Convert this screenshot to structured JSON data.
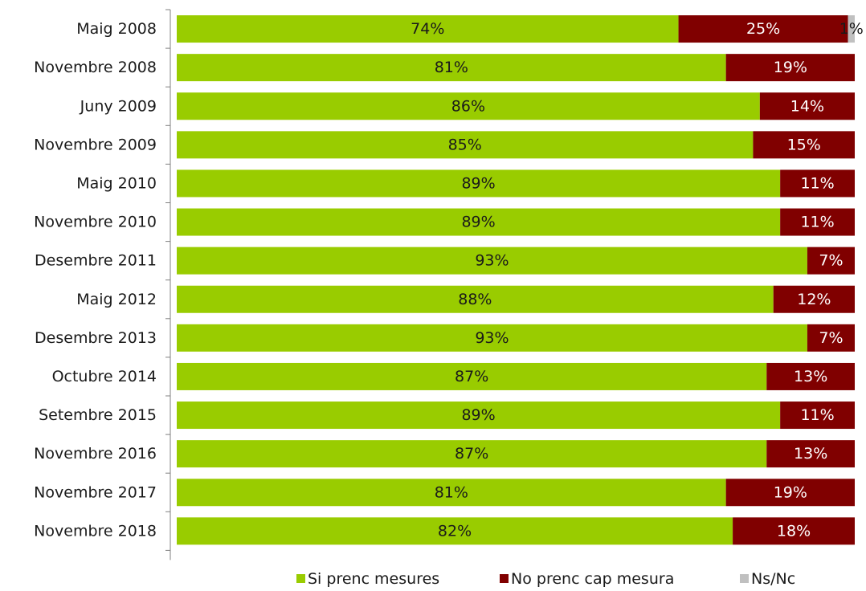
{
  "chart_data": {
    "type": "bar",
    "orientation": "horizontal",
    "stacked": true,
    "percent": true,
    "categories": [
      "Maig 2008",
      "Novembre 2008",
      "Juny 2009",
      "Novembre 2009",
      "Maig 2010",
      "Novembre 2010",
      "Desembre 2011",
      "Maig 2012",
      "Desembre 2013",
      "Octubre 2014",
      "Setembre 2015",
      "Novembre 2016",
      "Novembre 2017",
      "Novembre 2018"
    ],
    "series": [
      {
        "name": "Si prenc mesures",
        "color": "#99cc00",
        "label_color": "#1a1a1a",
        "values": [
          74,
          81,
          86,
          85,
          89,
          89,
          93,
          88,
          93,
          87,
          89,
          87,
          81,
          82
        ],
        "labels": [
          "74%",
          "81%",
          "86%",
          "85%",
          "89%",
          "89%",
          "93%",
          "88%",
          "93%",
          "87%",
          "89%",
          "87%",
          "81%",
          "82%"
        ]
      },
      {
        "name": "No prenc cap mesura",
        "color": "#800000",
        "label_color": "#ffffff",
        "values": [
          25,
          19,
          14,
          15,
          11,
          11,
          7,
          12,
          7,
          13,
          11,
          13,
          19,
          18
        ],
        "labels": [
          "25%",
          "19%",
          "14%",
          "15%",
          "11%",
          "11%",
          "7%",
          "12%",
          "7%",
          "13%",
          "11%",
          "13%",
          "19%",
          "18%"
        ]
      },
      {
        "name": "Ns/Nc",
        "color": "#c0c0c0",
        "label_color": "#1a1a1a",
        "values": [
          1,
          0,
          0,
          0,
          0,
          0,
          0,
          0,
          0,
          0,
          0,
          0,
          0,
          0
        ],
        "labels": [
          "1%",
          "",
          "",
          "",
          "",
          "",
          "",
          "",
          "",
          "",
          "",
          "",
          "",
          ""
        ]
      }
    ],
    "xlim": [
      0,
      100
    ],
    "grid": false,
    "legend_position": "bottom-right"
  }
}
